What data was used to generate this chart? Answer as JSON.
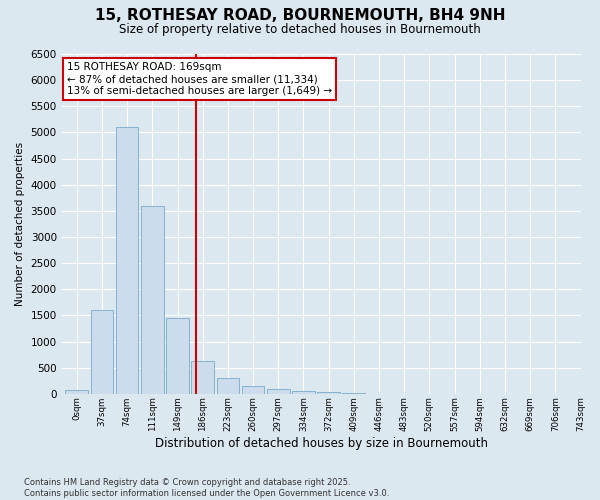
{
  "title": "15, ROTHESAY ROAD, BOURNEMOUTH, BH4 9NH",
  "subtitle": "Size of property relative to detached houses in Bournemouth",
  "xlabel": "Distribution of detached houses by size in Bournemouth",
  "ylabel": "Number of detached properties",
  "bar_values": [
    75,
    1600,
    5100,
    3600,
    1450,
    620,
    300,
    150,
    100,
    60,
    30,
    20,
    5,
    3,
    2,
    1,
    1,
    1,
    0,
    0
  ],
  "bin_labels": [
    "0sqm",
    "37sqm",
    "74sqm",
    "111sqm",
    "149sqm",
    "186sqm",
    "223sqm",
    "260sqm",
    "297sqm",
    "334sqm",
    "372sqm",
    "409sqm",
    "446sqm",
    "483sqm",
    "520sqm",
    "557sqm",
    "594sqm",
    "632sqm",
    "669sqm",
    "706sqm",
    "743sqm"
  ],
  "bar_color": "#ccdcec",
  "bar_edge_color": "#7aaac8",
  "red_line_x": 4.72,
  "annotation_line1": "15 ROTHESAY ROAD: 169sqm",
  "annotation_line2": "← 87% of detached houses are smaller (11,334)",
  "annotation_line3": "13% of semi-detached houses are larger (1,649) →",
  "annotation_box_color": "#ffffff",
  "annotation_box_edge_color": "#cc0000",
  "vline_color": "#cc0000",
  "ylim": [
    0,
    6500
  ],
  "yticks": [
    0,
    500,
    1000,
    1500,
    2000,
    2500,
    3000,
    3500,
    4000,
    4500,
    5000,
    5500,
    6000,
    6500
  ],
  "footnote": "Contains HM Land Registry data © Crown copyright and database right 2025.\nContains public sector information licensed under the Open Government Licence v3.0.",
  "figure_bg": "#dce8f0",
  "plot_bg": "#dce8f0",
  "grid_color": "#ffffff"
}
